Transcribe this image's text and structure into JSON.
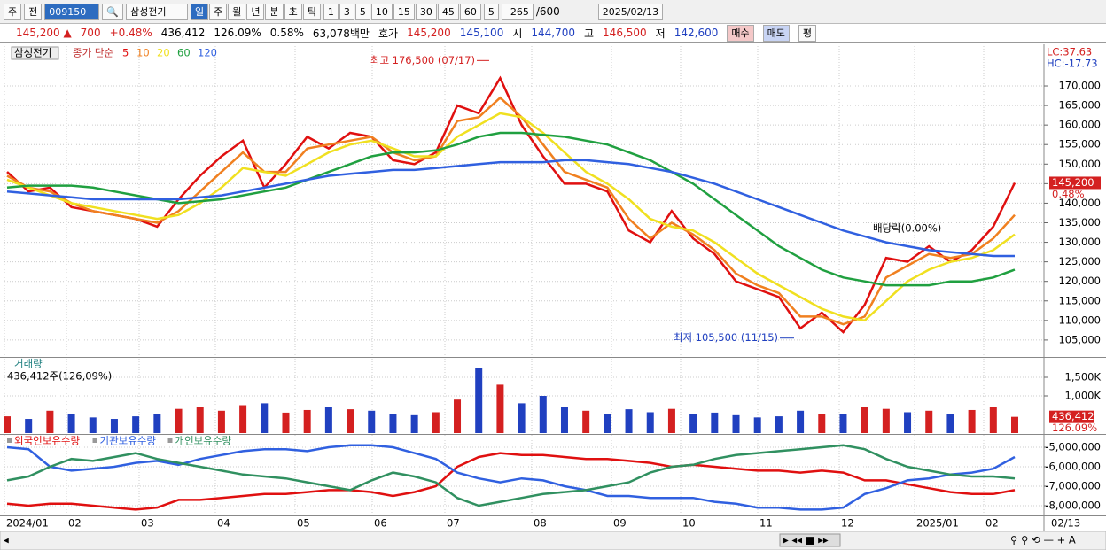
{
  "toolbar": {
    "market": "주",
    "mode": "전",
    "code": "009150",
    "name": "삼성전기",
    "periods": [
      "일",
      "주",
      "월",
      "년",
      "분",
      "초",
      "틱"
    ],
    "intervals": [
      "1",
      "3",
      "5",
      "10",
      "15",
      "30",
      "45",
      "60"
    ],
    "count_unit": "5",
    "count": "265",
    "max_count": "/600",
    "date": "2025/02/13"
  },
  "quote": {
    "price": "145,200 ▲",
    "change": "700",
    "change_pct": "+0.48%",
    "volume": "436,412",
    "volume_pct": "126.09%",
    "turnover": "0.58%",
    "amount": "63,078백만",
    "ask_label": "호가",
    "ask": "145,200",
    "bid": "145,100",
    "open_label": "시",
    "open": "144,700",
    "high_label": "고",
    "high": "146,500",
    "low_label": "저",
    "low": "142,600",
    "buttons": [
      "매수",
      "매도",
      "평"
    ]
  },
  "time_axis": {
    "labels": [
      "2024/01",
      "02",
      "03",
      "04",
      "05",
      "06",
      "07",
      "08",
      "09",
      "10",
      "11",
      "12",
      "2025/01",
      "02"
    ],
    "end_label": "02/13"
  },
  "chart_data": [
    {
      "type": "line",
      "title": "삼성전기",
      "legend_title": "종가 단순",
      "lc": "LC:37.63",
      "hc": "HC:-17.73",
      "price_tag": "145,200",
      "change_tag": "0.48%",
      "high": {
        "label": "최고 176,500 (07/17)",
        "value": 176500
      },
      "low": {
        "label": "최저 105,500 (11/15)",
        "value": 105500
      },
      "event": "배당락(0.00%)",
      "ylim": [
        100900,
        180200
      ],
      "yticks": [
        {
          "value": 105000,
          "label": "105,000"
        },
        {
          "value": 110000,
          "label": "110,000"
        },
        {
          "value": 115000,
          "label": "115,000"
        },
        {
          "value": 120000,
          "label": "120,000"
        },
        {
          "value": 125000,
          "label": "125,000"
        },
        {
          "value": 130000,
          "label": "130,000"
        },
        {
          "value": 135000,
          "label": "135,000"
        },
        {
          "value": 140000,
          "label": "140,000"
        },
        {
          "value": 145000,
          "label": "145,000"
        },
        {
          "value": 150000,
          "label": "150,000"
        },
        {
          "value": 155000,
          "label": "155,000"
        },
        {
          "value": 160000,
          "label": "160,000"
        },
        {
          "value": 165000,
          "label": "165,000"
        },
        {
          "value": 170000,
          "label": "170,000"
        }
      ],
      "grid": true,
      "series": [
        {
          "name": "5",
          "color": "#e01010",
          "values": [
            148000,
            143000,
            144000,
            139000,
            138000,
            137000,
            136000,
            134000,
            141000,
            147000,
            152000,
            156000,
            144000,
            150000,
            157000,
            154000,
            158000,
            157000,
            151000,
            150000,
            153000,
            165000,
            163000,
            172000,
            160000,
            152000,
            145000,
            145000,
            143000,
            133000,
            130000,
            138000,
            131000,
            127000,
            120000,
            118000,
            116000,
            108000,
            112000,
            107000,
            114000,
            126000,
            125000,
            129000,
            125000,
            128000,
            134000,
            145200
          ]
        },
        {
          "name": "10",
          "color": "#f08020",
          "values": [
            147000,
            144000,
            143000,
            140000,
            138000,
            137000,
            136000,
            135000,
            138000,
            143000,
            148000,
            153000,
            148000,
            148000,
            154000,
            155000,
            156000,
            157000,
            153000,
            151000,
            152000,
            161000,
            162000,
            167000,
            162000,
            155000,
            148000,
            146000,
            144000,
            136000,
            131000,
            135000,
            132000,
            128000,
            122000,
            119000,
            117000,
            111000,
            111000,
            109000,
            111000,
            121000,
            124000,
            127000,
            126000,
            127000,
            131000,
            137000
          ]
        },
        {
          "name": "20",
          "color": "#f0e020",
          "values": [
            146000,
            144000,
            142000,
            140000,
            139000,
            138000,
            137000,
            136000,
            137000,
            140000,
            144000,
            149000,
            148000,
            147000,
            150000,
            153000,
            155000,
            156000,
            154000,
            152000,
            152000,
            157000,
            160000,
            163000,
            162000,
            158000,
            153000,
            148000,
            145000,
            141000,
            136000,
            134000,
            133000,
            130000,
            126000,
            122000,
            119000,
            116000,
            113000,
            111000,
            110000,
            115000,
            120000,
            123000,
            125000,
            126000,
            128000,
            132000
          ]
        },
        {
          "name": "60",
          "color": "#20a040",
          "values": [
            144000,
            144500,
            144500,
            144500,
            144000,
            143000,
            142000,
            141000,
            140000,
            140500,
            141000,
            142000,
            143000,
            144000,
            146000,
            148000,
            150000,
            152000,
            153000,
            153000,
            153500,
            155000,
            157000,
            158000,
            158000,
            157500,
            157000,
            156000,
            155000,
            153000,
            151000,
            148000,
            145000,
            141000,
            137000,
            133000,
            129000,
            126000,
            123000,
            121000,
            120000,
            119000,
            119000,
            119000,
            120000,
            120000,
            121000,
            123000
          ]
        },
        {
          "name": "120",
          "color": "#3060e0",
          "values": [
            143000,
            142500,
            142000,
            141500,
            141000,
            141000,
            141000,
            141000,
            141000,
            141500,
            142000,
            143000,
            144000,
            145000,
            146000,
            147000,
            147500,
            148000,
            148500,
            148500,
            149000,
            149500,
            150000,
            150500,
            150500,
            150500,
            151000,
            151000,
            150500,
            150000,
            149000,
            148000,
            146500,
            145000,
            143000,
            141000,
            139000,
            137000,
            135000,
            133000,
            131500,
            130000,
            129000,
            128000,
            127500,
            127000,
            126500,
            126500
          ]
        }
      ]
    },
    {
      "type": "bar",
      "title": "거래량",
      "subtitle": "436,412주(126,09%)",
      "tag": "436,412",
      "tag_pct": "126.09%",
      "up_color": "#d42020",
      "down_color": "#2040c0",
      "ylim": [
        0,
        2000
      ],
      "yticks": [
        {
          "value": 1000,
          "label": "1,000K"
        },
        {
          "value": 1500,
          "label": "1,500K"
        }
      ],
      "values": [
        450,
        380,
        600,
        500,
        420,
        380,
        450,
        520,
        650,
        700,
        600,
        750,
        800,
        550,
        620,
        700,
        640,
        600,
        500,
        480,
        560,
        900,
        1750,
        1300,
        800,
        1000,
        700,
        600,
        520,
        640,
        560,
        650,
        500,
        550,
        480,
        420,
        450,
        600,
        500,
        520,
        700,
        650,
        560,
        600,
        500,
        620,
        700,
        436.412
      ]
    },
    {
      "type": "line",
      "ylim": [
        -8500000,
        -4364000
      ],
      "yticks": [
        {
          "value": -5000000,
          "label": "-5,000,000"
        },
        {
          "value": -6000000,
          "label": "-6,000,000"
        },
        {
          "value": -7000000,
          "label": "-7,000,000"
        },
        {
          "value": -8000000,
          "label": "-8,000,000"
        }
      ],
      "series": [
        {
          "name": "외국인보유수량",
          "color": "#e01010",
          "values": [
            -7900000,
            -8000000,
            -7900000,
            -7900000,
            -8000000,
            -8100000,
            -8200000,
            -8100000,
            -7700000,
            -7700000,
            -7600000,
            -7500000,
            -7400000,
            -7400000,
            -7300000,
            -7200000,
            -7200000,
            -7300000,
            -7500000,
            -7300000,
            -7000000,
            -6000000,
            -5500000,
            -5300000,
            -5400000,
            -5400000,
            -5500000,
            -5600000,
            -5600000,
            -5700000,
            -5800000,
            -6000000,
            -5900000,
            -6000000,
            -6100000,
            -6200000,
            -6200000,
            -6300000,
            -6200000,
            -6300000,
            -6700000,
            -6700000,
            -6900000,
            -7100000,
            -7300000,
            -7400000,
            -7400000,
            -7200000
          ]
        },
        {
          "name": "기관보유수량",
          "color": "#3060e0",
          "values": [
            -5000000,
            -5100000,
            -6000000,
            -6200000,
            -6100000,
            -6000000,
            -5800000,
            -5700000,
            -5900000,
            -5600000,
            -5400000,
            -5200000,
            -5100000,
            -5100000,
            -5200000,
            -5000000,
            -4900000,
            -4900000,
            -5000000,
            -5300000,
            -5600000,
            -6300000,
            -6600000,
            -6800000,
            -6600000,
            -6700000,
            -7000000,
            -7200000,
            -7500000,
            -7500000,
            -7600000,
            -7600000,
            -7600000,
            -7800000,
            -7900000,
            -8100000,
            -8100000,
            -8200000,
            -8200000,
            -8100000,
            -7400000,
            -7100000,
            -6700000,
            -6600000,
            -6400000,
            -6300000,
            -6100000,
            -5500000
          ]
        },
        {
          "name": "개인보유수량",
          "color": "#309060",
          "values": [
            -6700000,
            -6500000,
            -6000000,
            -5600000,
            -5700000,
            -5500000,
            -5300000,
            -5600000,
            -5800000,
            -6000000,
            -6200000,
            -6400000,
            -6500000,
            -6600000,
            -6800000,
            -7000000,
            -7200000,
            -6700000,
            -6300000,
            -6500000,
            -6800000,
            -7600000,
            -8000000,
            -7800000,
            -7600000,
            -7400000,
            -7300000,
            -7200000,
            -7000000,
            -6800000,
            -6300000,
            -6000000,
            -5900000,
            -5600000,
            -5400000,
            -5300000,
            -5200000,
            -5100000,
            -5000000,
            -4900000,
            -5100000,
            -5600000,
            -6000000,
            -6200000,
            -6400000,
            -6500000,
            -6500000,
            -6600000
          ]
        }
      ]
    }
  ]
}
